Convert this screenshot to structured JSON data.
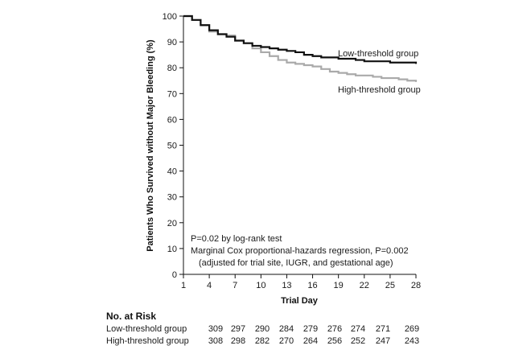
{
  "chart_data": {
    "type": "line",
    "title": "",
    "xlabel": "Trial Day",
    "ylabel": "Patients Who Survived without Major Bleeding (%)",
    "xlim": [
      1,
      28
    ],
    "ylim": [
      0,
      100
    ],
    "x_ticks": [
      1,
      4,
      7,
      10,
      13,
      16,
      19,
      22,
      25,
      28
    ],
    "y_ticks": [
      0,
      10,
      20,
      30,
      40,
      50,
      60,
      70,
      80,
      90,
      100
    ],
    "series": [
      {
        "name": "Low-threshold group",
        "label": "Low-threshold group",
        "color": "#111111",
        "points": [
          [
            1,
            100
          ],
          [
            2,
            98.5
          ],
          [
            3,
            96.5
          ],
          [
            4,
            94.5
          ],
          [
            5,
            93
          ],
          [
            6,
            92
          ],
          [
            7,
            90.5
          ],
          [
            8,
            89.5
          ],
          [
            9,
            88.5
          ],
          [
            10,
            88
          ],
          [
            11,
            87.5
          ],
          [
            12,
            87
          ],
          [
            13,
            86.5
          ],
          [
            14,
            86
          ],
          [
            15,
            85
          ],
          [
            16,
            84.5
          ],
          [
            17,
            84
          ],
          [
            18,
            84
          ],
          [
            19,
            83.5
          ],
          [
            20,
            83.5
          ],
          [
            21,
            83
          ],
          [
            22,
            82.5
          ],
          [
            23,
            82.5
          ],
          [
            24,
            82.5
          ],
          [
            25,
            82
          ],
          [
            26,
            82
          ],
          [
            27,
            82
          ],
          [
            28,
            81.5
          ]
        ]
      },
      {
        "name": "High-threshold group",
        "label": "High-threshold group",
        "color": "#aaaaaa",
        "points": [
          [
            1,
            100
          ],
          [
            2,
            98.5
          ],
          [
            3,
            96.5
          ],
          [
            4,
            94
          ],
          [
            5,
            93
          ],
          [
            6,
            92.5
          ],
          [
            7,
            90.5
          ],
          [
            8,
            89.5
          ],
          [
            9,
            87.5
          ],
          [
            10,
            86
          ],
          [
            11,
            84.5
          ],
          [
            12,
            83
          ],
          [
            13,
            82
          ],
          [
            14,
            81.5
          ],
          [
            15,
            81
          ],
          [
            16,
            80.5
          ],
          [
            17,
            79.5
          ],
          [
            18,
            78.5
          ],
          [
            19,
            78
          ],
          [
            20,
            77.5
          ],
          [
            21,
            77
          ],
          [
            22,
            77
          ],
          [
            23,
            76.5
          ],
          [
            24,
            76
          ],
          [
            25,
            76
          ],
          [
            26,
            75.5
          ],
          [
            27,
            75
          ],
          [
            28,
            74.5
          ]
        ]
      }
    ],
    "annotations": [
      "P=0.02 by log-rank test",
      "Marginal Cox proportional-hazards regression, P=0.002",
      "(adjusted for trial site, IUGR, and gestational age)"
    ],
    "risk_table": {
      "title": "No. at Risk",
      "rows": [
        {
          "label": "Low-threshold group",
          "values": [
            309,
            297,
            290,
            284,
            279,
            276,
            274,
            271,
            269
          ]
        },
        {
          "label": "High-threshold group",
          "values": [
            308,
            298,
            282,
            270,
            264,
            256,
            252,
            247,
            243
          ]
        }
      ]
    }
  }
}
